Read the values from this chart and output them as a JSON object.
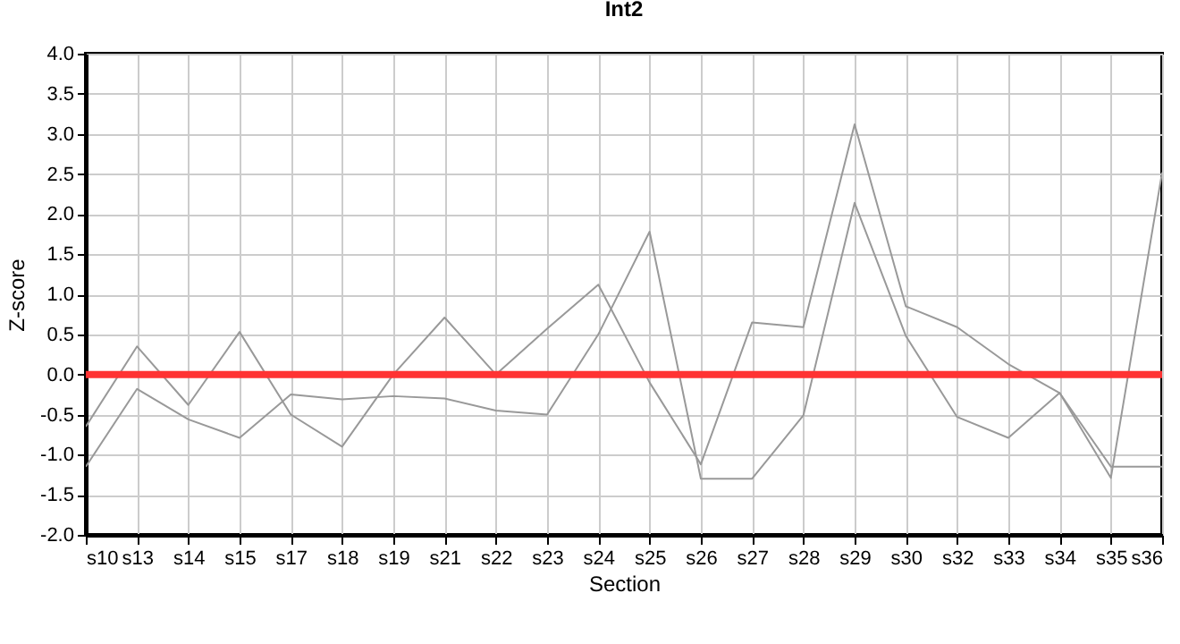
{
  "chart_data": {
    "type": "line",
    "title": "Int2",
    "xlabel": "Section",
    "ylabel": "Z-score",
    "categories": [
      "s10",
      "s13",
      "s14",
      "s15",
      "s17",
      "s18",
      "s19",
      "s21",
      "s22",
      "s23",
      "s24",
      "s25",
      "s26",
      "s27",
      "s28",
      "s29",
      "s30",
      "s32",
      "s33",
      "s34",
      "s35",
      "s36"
    ],
    "series": [
      {
        "color": "#999999",
        "values": [
          -0.65,
          0.35,
          -0.38,
          0.53,
          -0.5,
          -0.9,
          0.0,
          0.71,
          0.0,
          0.57,
          1.12,
          -0.1,
          -1.12,
          0.65,
          0.59,
          3.12,
          0.85,
          0.59,
          0.13,
          -0.23,
          -1.29,
          2.52
        ]
      },
      {
        "color": "#999999",
        "values": [
          -1.15,
          -0.18,
          -0.56,
          -0.79,
          -0.25,
          -0.31,
          -0.27,
          -0.3,
          -0.45,
          -0.5,
          0.5,
          1.78,
          -1.3,
          -1.3,
          -0.51,
          2.14,
          0.48,
          -0.53,
          -0.79,
          -0.23,
          -1.15,
          -1.15
        ]
      }
    ],
    "ylim": [
      -2,
      4
    ],
    "yticks": [
      {
        "value": -2,
        "label": "-2.0"
      },
      {
        "value": -1.5,
        "label": "-1.5"
      },
      {
        "value": -1,
        "label": "-1.0"
      },
      {
        "value": -0.5,
        "label": "-0.5"
      },
      {
        "value": 0,
        "label": "0.0"
      },
      {
        "value": 0.5,
        "label": "0.5"
      },
      {
        "value": 1,
        "label": "1.0"
      },
      {
        "value": 1.5,
        "label": "1.5"
      },
      {
        "value": 2,
        "label": "2.0"
      },
      {
        "value": 2.5,
        "label": "2.5"
      },
      {
        "value": 3,
        "label": "3.0"
      },
      {
        "value": 3.5,
        "label": "3.5"
      },
      {
        "value": 4,
        "label": "4.0"
      }
    ],
    "ref_lines": [
      {
        "axis": "y",
        "value": 0,
        "color": "#ff3333"
      }
    ],
    "grid": true,
    "legend": false,
    "marker": "none",
    "line_style": "solid"
  }
}
